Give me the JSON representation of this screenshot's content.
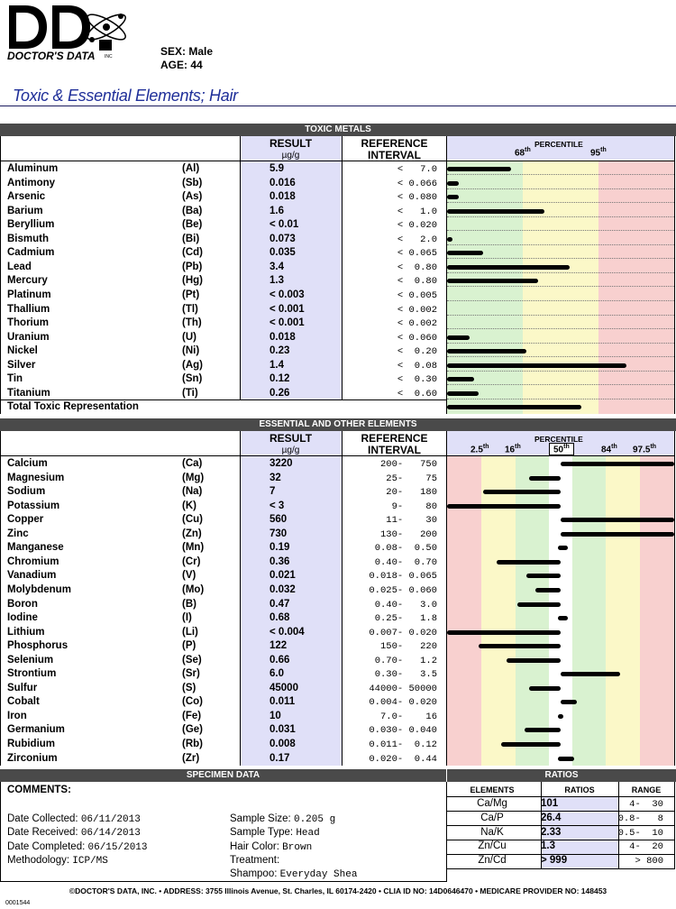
{
  "header": {
    "logo_text": "DOCTOR'S DATA",
    "logo_suffix": "INC",
    "sex_label": "SEX:",
    "sex": "Male",
    "age_label": "AGE:",
    "age": "44",
    "title": "Toxic & Essential Elements; Hair"
  },
  "toxic": {
    "section_title": "TOXIC METALS",
    "col_result": "RESULT",
    "col_unit": "µg/g",
    "col_ref1": "REFERENCE",
    "col_ref2": "INTERVAL",
    "percentile_title": "PERCENTILE",
    "p68": "68",
    "p95": "95",
    "th": "th",
    "rows": [
      {
        "name": "Aluminum",
        "sym": "(Al)",
        "result": "5.9",
        "ref": "<   7.0",
        "bar": 0.28
      },
      {
        "name": "Antimony",
        "sym": "(Sb)",
        "result": "0.016",
        "ref": "< 0.066",
        "bar": 0.05
      },
      {
        "name": "Arsenic",
        "sym": "(As)",
        "result": "0.018",
        "ref": "< 0.080",
        "bar": 0.05
      },
      {
        "name": "Barium",
        "sym": "(Ba)",
        "result": "1.6",
        "ref": "<   1.0",
        "bar": 0.43
      },
      {
        "name": "Beryllium",
        "sym": "(Be)",
        "result": "< 0.01",
        "ref": "< 0.020",
        "bar": 0.0
      },
      {
        "name": "Bismuth",
        "sym": "(Bi)",
        "result": "0.073",
        "ref": "<   2.0",
        "bar": 0.025
      },
      {
        "name": "Cadmium",
        "sym": "(Cd)",
        "result": "0.035",
        "ref": "< 0.065",
        "bar": 0.16
      },
      {
        "name": "Lead",
        "sym": "(Pb)",
        "result": "3.4",
        "ref": "<  0.80",
        "bar": 0.54
      },
      {
        "name": "Mercury",
        "sym": "(Hg)",
        "result": "1.3",
        "ref": "<  0.80",
        "bar": 0.4
      },
      {
        "name": "Platinum",
        "sym": "(Pt)",
        "result": "< 0.003",
        "ref": "< 0.005",
        "bar": 0.0
      },
      {
        "name": "Thallium",
        "sym": "(Tl)",
        "result": "< 0.001",
        "ref": "< 0.002",
        "bar": 0.0
      },
      {
        "name": "Thorium",
        "sym": "(Th)",
        "result": "< 0.001",
        "ref": "< 0.002",
        "bar": 0.0
      },
      {
        "name": "Uranium",
        "sym": "(U)",
        "result": "0.018",
        "ref": "< 0.060",
        "bar": 0.1
      },
      {
        "name": "Nickel",
        "sym": "(Ni)",
        "result": "0.23",
        "ref": "<  0.20",
        "bar": 0.35
      },
      {
        "name": "Silver",
        "sym": "(Ag)",
        "result": "1.4",
        "ref": "<  0.08",
        "bar": 0.79
      },
      {
        "name": "Tin",
        "sym": "(Sn)",
        "result": "0.12",
        "ref": "<  0.30",
        "bar": 0.12
      },
      {
        "name": "Titanium",
        "sym": "(Ti)",
        "result": "0.26",
        "ref": "<  0.60",
        "bar": 0.14
      }
    ],
    "total_label": "Total Toxic Representation",
    "total_bar": 0.59
  },
  "essential": {
    "section_title": "ESSENTIAL AND OTHER ELEMENTS",
    "col_result": "RESULT",
    "col_unit": "µg/g",
    "col_ref1": "REFERENCE",
    "col_ref2": "INTERVAL",
    "percentile_title": "PERCENTILE",
    "p2_5": "2.5",
    "p16": "16",
    "p50": "50",
    "p84": "84",
    "p97_5": "97.5",
    "th": "th",
    "rows": [
      {
        "name": "Calcium",
        "sym": "(Ca)",
        "result": "3220",
        "ref": "200-   750",
        "lo": 0.5,
        "hi": 1.0
      },
      {
        "name": "Magnesium",
        "sym": "(Mg)",
        "result": "32",
        "ref": " 25-    75",
        "lo": 0.36,
        "hi": 0.5
      },
      {
        "name": "Sodium",
        "sym": "(Na)",
        "result": "7",
        "ref": " 20-   180",
        "lo": 0.16,
        "hi": 0.5
      },
      {
        "name": "Potassium",
        "sym": "(K)",
        "result": "< 3",
        "ref": "  9-    80",
        "lo": 0.0,
        "hi": 0.5
      },
      {
        "name": "Copper",
        "sym": "(Cu)",
        "result": "560",
        "ref": " 11-    30",
        "lo": 0.5,
        "hi": 1.0
      },
      {
        "name": "Zinc",
        "sym": "(Zn)",
        "result": "730",
        "ref": "130-   200",
        "lo": 0.5,
        "hi": 1.0
      },
      {
        "name": "Manganese",
        "sym": "(Mn)",
        "result": "0.19",
        "ref": "0.08-  0.50",
        "lo": 0.49,
        "hi": 0.53
      },
      {
        "name": "Chromium",
        "sym": "(Cr)",
        "result": "0.36",
        "ref": "0.40-  0.70",
        "lo": 0.22,
        "hi": 0.5
      },
      {
        "name": "Vanadium",
        "sym": "(V)",
        "result": "0.021",
        "ref": "0.018- 0.065",
        "lo": 0.35,
        "hi": 0.5
      },
      {
        "name": "Molybdenum",
        "sym": "(Mo)",
        "result": "0.032",
        "ref": "0.025- 0.060",
        "lo": 0.39,
        "hi": 0.5
      },
      {
        "name": "Boron",
        "sym": "(B)",
        "result": "0.47",
        "ref": "0.40-   3.0",
        "lo": 0.31,
        "hi": 0.5
      },
      {
        "name": "Iodine",
        "sym": "(I)",
        "result": "0.68",
        "ref": "0.25-   1.8",
        "lo": 0.49,
        "hi": 0.53
      },
      {
        "name": "Lithium",
        "sym": "(Li)",
        "result": "< 0.004",
        "ref": "0.007- 0.020",
        "lo": 0.0,
        "hi": 0.5
      },
      {
        "name": "Phosphorus",
        "sym": "(P)",
        "result": "122",
        "ref": "150-   220",
        "lo": 0.14,
        "hi": 0.5
      },
      {
        "name": "Selenium",
        "sym": "(Se)",
        "result": "0.66",
        "ref": "0.70-   1.2",
        "lo": 0.26,
        "hi": 0.5
      },
      {
        "name": "Strontium",
        "sym": "(Sr)",
        "result": "6.0",
        "ref": "0.30-   3.5",
        "lo": 0.5,
        "hi": 0.76
      },
      {
        "name": "Sulfur",
        "sym": "(S)",
        "result": "45000",
        "ref": "44000- 50000",
        "lo": 0.36,
        "hi": 0.5
      },
      {
        "name": "Cobalt",
        "sym": "(Co)",
        "result": "0.011",
        "ref": "0.004- 0.020",
        "lo": 0.5,
        "hi": 0.57
      },
      {
        "name": "Iron",
        "sym": "(Fe)",
        "result": "10",
        "ref": "7.0-    16",
        "lo": 0.49,
        "hi": 0.51
      },
      {
        "name": "Germanium",
        "sym": "(Ge)",
        "result": "0.031",
        "ref": "0.030- 0.040",
        "lo": 0.34,
        "hi": 0.5
      },
      {
        "name": "Rubidium",
        "sym": "(Rb)",
        "result": "0.008",
        "ref": "0.011-  0.12",
        "lo": 0.24,
        "hi": 0.5
      },
      {
        "name": "Zirconium",
        "sym": "(Zr)",
        "result": "0.17",
        "ref": "0.020-  0.44",
        "lo": 0.49,
        "hi": 0.56
      }
    ]
  },
  "specimen": {
    "section_title": "SPECIMEN DATA",
    "comments_label": "COMMENTS:",
    "date_collected_label": "Date Collected:",
    "date_collected": "06/11/2013",
    "date_received_label": "Date Received:",
    "date_received": "06/14/2013",
    "date_completed_label": "Date Completed:",
    "date_completed": "06/15/2013",
    "methodology_label": "Methodology:",
    "methodology": "ICP/MS",
    "sample_size_label": "Sample Size:",
    "sample_size": "0.205 g",
    "sample_type_label": "Sample Type:",
    "sample_type": "Head",
    "hair_color_label": "Hair Color:",
    "hair_color": "Brown",
    "treatment_label": "Treatment:",
    "treatment": "",
    "shampoo_label": "Shampoo:",
    "shampoo": "Everyday Shea"
  },
  "ratios": {
    "section_title": "RATIOS",
    "col_elements": "ELEMENTS",
    "col_ratios": "RATIOS",
    "col_range": "RANGE",
    "rows": [
      {
        "el": "Ca/Mg",
        "val": "101",
        "range": "  4-  30"
      },
      {
        "el": "Ca/P",
        "val": "26.4",
        "range": "0.8-   8"
      },
      {
        "el": "Na/K",
        "val": "2.33",
        "range": "0.5-  10"
      },
      {
        "el": "Zn/Cu",
        "val": "1.3",
        "range": "  4-  20"
      },
      {
        "el": "Zn/Cd",
        "val": "> 999",
        "range": "  > 800"
      }
    ]
  },
  "footer": {
    "text": "©DOCTOR'S DATA, INC. • ADDRESS: 3755 Illinois Avenue, St. Charles, IL 60174-2420 • CLIA ID NO: 14D0646470 • MEDICARE PROVIDER NO: 148453",
    "form_no": "0001544"
  },
  "colors": {
    "green": "#d9f2d0",
    "yellow": "#fbf8c8",
    "red": "#f8d0cf",
    "lavender": "#e0e0f8",
    "section": "#4a4a4a",
    "title_blue": "#1f2f99"
  }
}
